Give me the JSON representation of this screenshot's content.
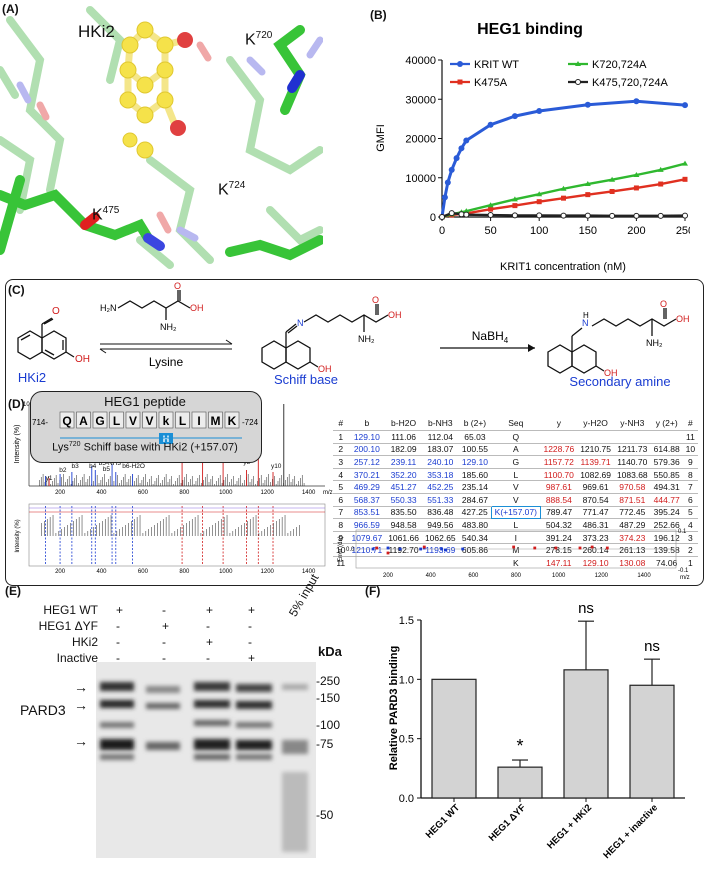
{
  "panel_labels": {
    "a": "(A)",
    "b": "(B)",
    "c": "(C)",
    "d": "(D)",
    "e": "(E)",
    "f": "(F)"
  },
  "panel_a": {
    "ligand": "HKi2",
    "residues": [
      {
        "name": "K",
        "sup": "720"
      },
      {
        "name": "K",
        "sup": "475"
      },
      {
        "name": "K",
        "sup": "724"
      }
    ]
  },
  "chart_b": {
    "type": "line",
    "title": "HEG1 binding",
    "xlabel": "KRIT1 concentration (nM)",
    "ylabel": "GMFI",
    "xlim": [
      0,
      250
    ],
    "ylim": [
      0,
      40000
    ],
    "xticks": [
      0,
      50,
      100,
      150,
      200,
      250
    ],
    "yticks": [
      0,
      10000,
      20000,
      30000,
      40000
    ],
    "series": [
      {
        "name": "KRIT WT",
        "color": "#2a5bd7",
        "marker": "circle",
        "x": [
          0,
          3,
          6,
          10,
          15,
          20,
          25,
          50,
          75,
          100,
          150,
          200,
          250
        ],
        "y": [
          0,
          5000,
          8800,
          12000,
          15000,
          17500,
          19500,
          23500,
          25700,
          27000,
          28600,
          29500,
          28500
        ]
      },
      {
        "name": "K475A",
        "color": "#e03020",
        "marker": "square",
        "x": [
          0,
          10,
          20,
          25,
          50,
          75,
          100,
          125,
          150,
          175,
          200,
          225,
          250
        ],
        "y": [
          0,
          500,
          800,
          900,
          2000,
          2900,
          3900,
          4800,
          5700,
          6500,
          7400,
          8400,
          9600
        ]
      },
      {
        "name": "K720,724A",
        "color": "#2fb82f",
        "marker": "triangle",
        "x": [
          0,
          10,
          20,
          25,
          50,
          75,
          100,
          125,
          150,
          175,
          200,
          225,
          250
        ],
        "y": [
          0,
          700,
          1200,
          1500,
          3000,
          4500,
          5800,
          7200,
          8400,
          9500,
          10700,
          12000,
          13600
        ]
      },
      {
        "name": "K475,720,724A",
        "color": "#222222",
        "marker": "open-circle",
        "x": [
          0,
          10,
          20,
          25,
          50,
          75,
          100,
          125,
          150,
          175,
          200,
          225,
          250
        ],
        "y": [
          0,
          1000,
          700,
          600,
          500,
          400,
          400,
          350,
          350,
          300,
          300,
          300,
          350
        ]
      }
    ]
  },
  "scheme_c": {
    "reagent1": "Lysine",
    "reagent2": "NaBH",
    "reagent2_sub": "4",
    "names": [
      "HKi2",
      "Schiff base",
      "Secondary amine"
    ]
  },
  "peptide_d": {
    "title": "HEG1 peptide",
    "start": "714-",
    "end": "-724",
    "residues": [
      "Q",
      "A",
      "G",
      "L",
      "V",
      "V",
      "k",
      "L",
      "I",
      "M",
      "K"
    ],
    "caption_pre": "Lys",
    "caption_sup": "720",
    "caption_post": " Schiff base with HKi2 (+157.07)"
  },
  "spectrum_d": {
    "ylabel": "Intensity (%)",
    "xlabel": "m/z",
    "xticks": [
      "200",
      "400",
      "600",
      "800",
      "1000",
      "1200",
      "1400"
    ],
    "peak_labels": [
      "y1",
      "b2",
      "b3",
      "b4-NH3",
      "b4",
      "b5-H2O",
      "b5-NH3",
      "b5",
      "b6-H2O",
      "y5",
      "y6",
      "y7",
      "y8",
      "y9",
      "y10"
    ],
    "peak_label_y100": "100"
  },
  "ion_table": {
    "headers": [
      "#",
      "b",
      "b-H2O",
      "b-NH3",
      "b (2+)",
      "Seq",
      "y",
      "y-H2O",
      "y-NH3",
      "y (2+)",
      "#"
    ],
    "rows": [
      [
        "1",
        "129.10",
        "111.06",
        "112.04",
        "65.03",
        "Q",
        "",
        "",
        "",
        "",
        "11"
      ],
      [
        "2",
        "200.10",
        "182.09",
        "183.07",
        "100.55",
        "A",
        "1228.76",
        "1210.75",
        "1211.73",
        "614.88",
        "10"
      ],
      [
        "3",
        "257.12",
        "239.11",
        "240.10",
        "129.10",
        "G",
        "1157.72",
        "1139.71",
        "1140.70",
        "579.36",
        "9"
      ],
      [
        "4",
        "370.21",
        "352.20",
        "353.18",
        "185.60",
        "L",
        "1100.70",
        "1082.69",
        "1083.68",
        "550.85",
        "8"
      ],
      [
        "5",
        "469.29",
        "451.27",
        "452.25",
        "235.14",
        "V",
        "987.61",
        "969.61",
        "970.58",
        "494.31",
        "7"
      ],
      [
        "6",
        "568.37",
        "550.33",
        "551.33",
        "284.67",
        "V",
        "888.54",
        "870.54",
        "871.51",
        "444.77",
        "6"
      ],
      [
        "7",
        "853.51",
        "835.50",
        "836.48",
        "427.25",
        "K(+157.07)",
        "789.47",
        "771.47",
        "772.45",
        "395.24",
        "5"
      ],
      [
        "8",
        "966.59",
        "948.58",
        "949.56",
        "483.80",
        "L",
        "504.32",
        "486.31",
        "487.29",
        "252.66",
        "4"
      ],
      [
        "9",
        "1079.67",
        "1061.66",
        "1062.65",
        "540.34",
        "I",
        "391.24",
        "373.23",
        "374.23",
        "196.12",
        "3"
      ],
      [
        "10",
        "1210.71",
        "1192.70",
        "1193.69",
        "605.86",
        "M",
        "278.15",
        "260.14",
        "261.13",
        "139.58",
        "2"
      ],
      [
        "11",
        "",
        "",
        "",
        "",
        "K",
        "147.11",
        "129.10",
        "130.08",
        "74.06",
        "1"
      ]
    ]
  },
  "error_plot": {
    "ylabel": "Error (da)",
    "xlabel": "m/z",
    "top": "0.1",
    "zero": "0.0",
    "bottom": "-0.1",
    "xticks": [
      "200",
      "400",
      "600",
      "800",
      "1000",
      "1200",
      "1400"
    ]
  },
  "blot_e": {
    "conditions": [
      "HEG1 WT",
      "HEG1 ΔYF",
      "HKi2",
      "Inactive"
    ],
    "lanes": [
      [
        "+",
        "-",
        "+",
        "+"
      ],
      [
        "-",
        "+",
        "-",
        "-"
      ],
      [
        "-",
        "-",
        "+",
        "-"
      ],
      [
        "-",
        "-",
        "-",
        "+"
      ]
    ],
    "input_label": "5% input",
    "protein": "PARD3",
    "kda_label": "kDa",
    "markers": [
      "250",
      "150",
      "100",
      "75",
      "50"
    ]
  },
  "chart_f": {
    "type": "bar",
    "ylabel": "Relative PARD3 binding",
    "categories": [
      "HEG1 WT",
      "HEG1 ΔYF",
      "HEG1 + HKi2",
      "HEG1 + inactive"
    ],
    "values": [
      1.0,
      0.26,
      1.08,
      0.95
    ],
    "errors": [
      0,
      0.06,
      0.41,
      0.22
    ],
    "annotations": [
      "",
      "*",
      "ns",
      "ns"
    ],
    "ylim": [
      0,
      1.5
    ],
    "yticks": [
      "0.0",
      "0.5",
      "1.0",
      "1.5"
    ]
  }
}
